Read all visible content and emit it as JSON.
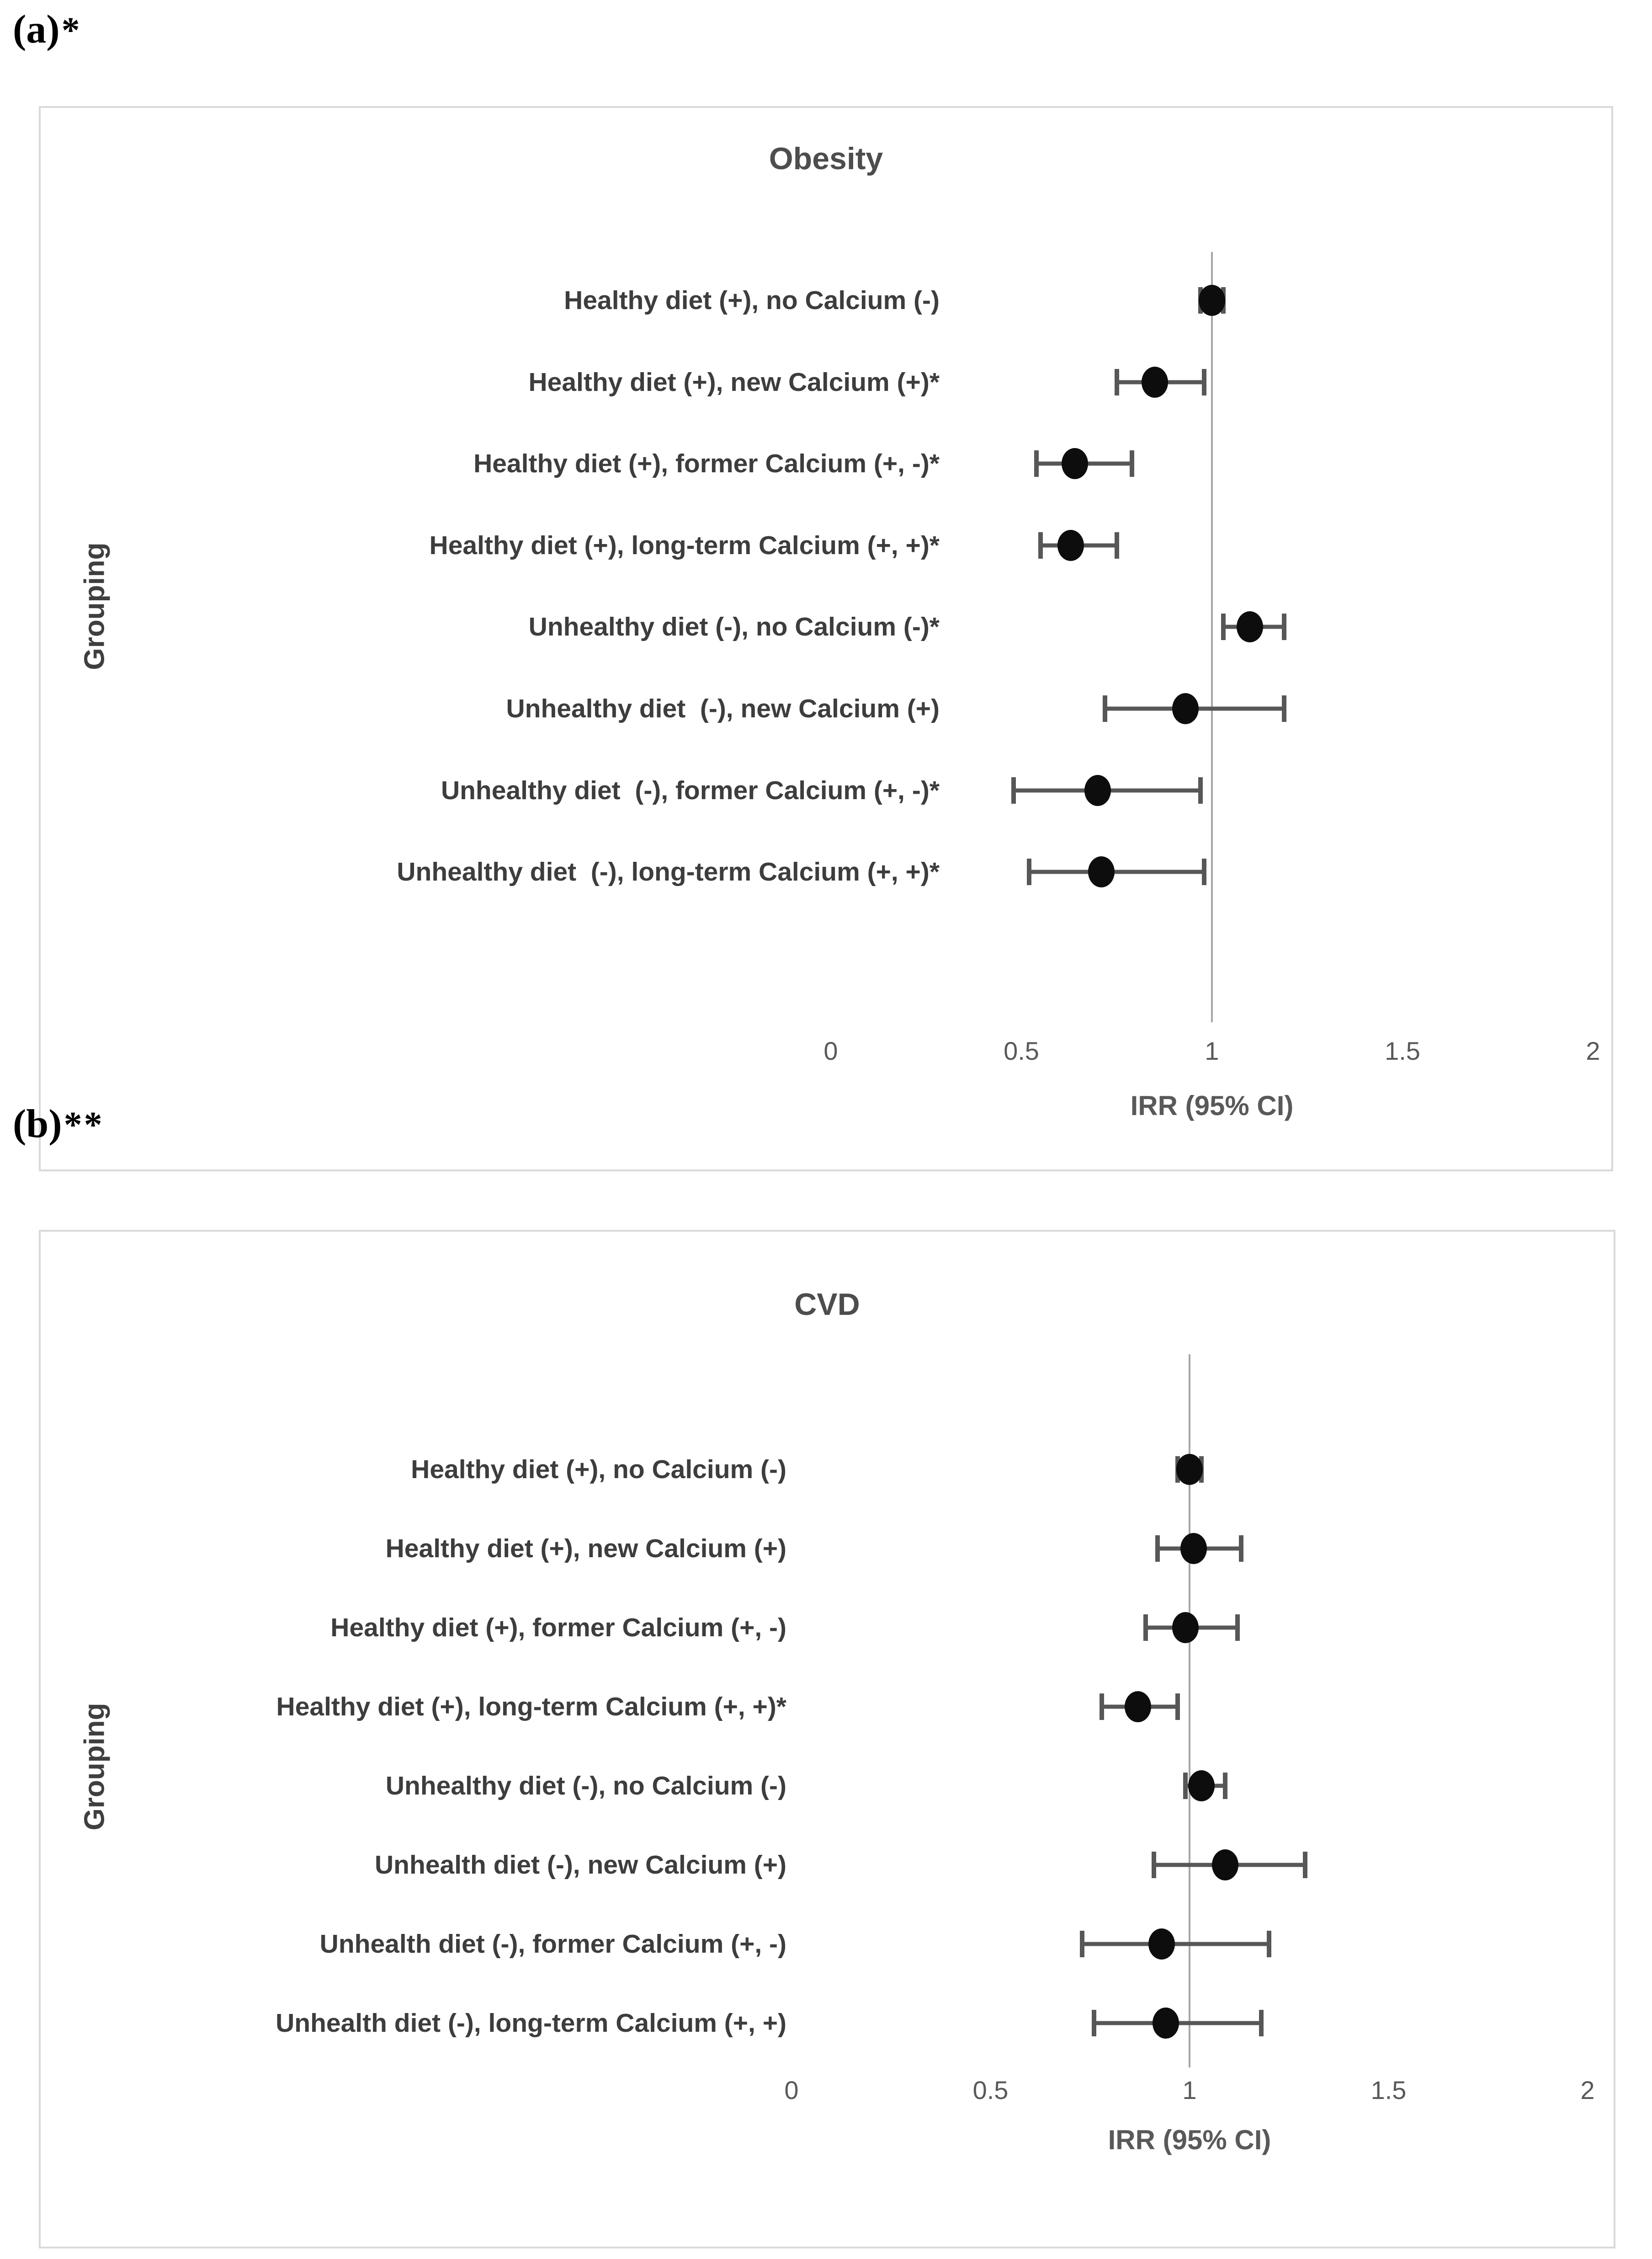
{
  "annotations": [
    {
      "label": "(a)",
      "stars": "*"
    },
    {
      "label": "(b)",
      "stars": "**"
    }
  ],
  "colors": {
    "marker": "#0d0d0d",
    "error_bar": "#575757",
    "reference_line": "#a6a6a6",
    "panel_border": "#d9d9d9",
    "title_text": "#4d4d4d",
    "label_text": "#3d3d3d",
    "tick_text": "#595959"
  },
  "chart_data": [
    {
      "type": "scatter",
      "subtype": "forest-plot",
      "title": "Obesity",
      "xlabel": "IRR (95% CI)",
      "ylabel": "Grouping",
      "xlim": [
        0,
        2
      ],
      "x_ticks": [
        0,
        0.5,
        1,
        1.5,
        2
      ],
      "x_tick_labels": [
        "0",
        "0.5",
        "1",
        "1.5",
        "2"
      ],
      "reference_line": 1,
      "legend": "none",
      "grid": "vertical reference line at x=1 only",
      "categories": [
        "Healthy diet (+), no Calcium (-)",
        "Healthy diet (+), new Calcium (+)*",
        "Healthy diet (+), former Calcium (+, -)*",
        "Healthy diet (+), long-term Calcium (+, +)*",
        "Unhealthy diet (-), no Calcium (-)*",
        "Unhealthy diet  (-), new Calcium (+)",
        "Unhealthy diet  (-), former Calcium (+, -)*",
        "Unhealthy diet  (-), long-term Calcium (+, +)*"
      ],
      "values": [
        1.0,
        0.85,
        0.64,
        0.63,
        1.1,
        0.93,
        0.7,
        0.71
      ],
      "ci_low": [
        0.97,
        0.75,
        0.54,
        0.55,
        1.03,
        0.72,
        0.48,
        0.52
      ],
      "ci_high": [
        1.03,
        0.98,
        0.79,
        0.75,
        1.19,
        1.19,
        0.97,
        0.98
      ]
    },
    {
      "type": "scatter",
      "subtype": "forest-plot",
      "title": "CVD",
      "xlabel": "IRR (95% CI)",
      "ylabel": "Grouping",
      "xlim": [
        0,
        2
      ],
      "x_ticks": [
        0,
        0.5,
        1,
        1.5,
        2
      ],
      "x_tick_labels": [
        "0",
        "0.5",
        "1",
        "1.5",
        "2"
      ],
      "reference_line": 1,
      "legend": "none",
      "grid": "vertical reference line at x=1 only",
      "categories": [
        "Healthy diet (+), no Calcium (-)",
        "Healthy diet (+), new Calcium (+)",
        "Healthy diet (+), former Calcium (+, -)",
        "Healthy diet (+), long-term Calcium (+, +)*",
        "Unhealthy diet (-), no Calcium (-)",
        "Unhealth diet (-), new Calcium (+)",
        "Unhealth diet (-), former Calcium (+, -)",
        "Unhealth diet (-), long-term Calcium (+, +)"
      ],
      "values": [
        1.0,
        1.01,
        0.99,
        0.87,
        1.03,
        1.09,
        0.93,
        0.94
      ],
      "ci_low": [
        0.97,
        0.92,
        0.89,
        0.78,
        0.99,
        0.91,
        0.73,
        0.76
      ],
      "ci_high": [
        1.03,
        1.13,
        1.12,
        0.97,
        1.09,
        1.29,
        1.2,
        1.18
      ]
    }
  ]
}
